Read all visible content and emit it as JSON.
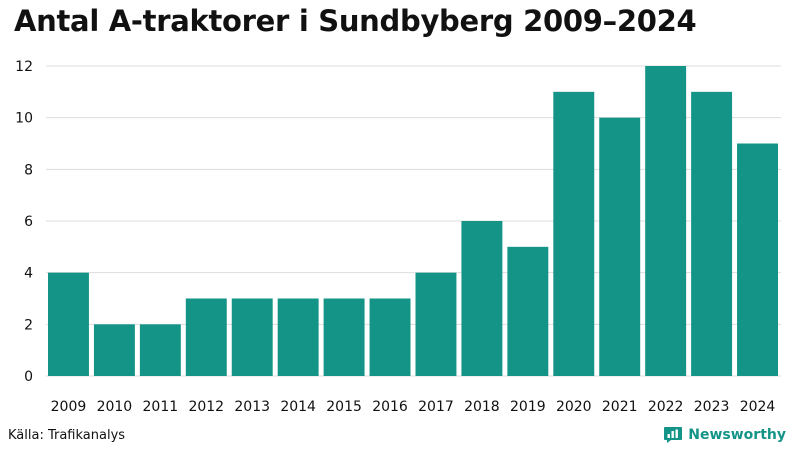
{
  "title": "Antal A-traktorer i Sundbyberg 2009–2024",
  "source": "Källa: Trafikanalys",
  "brand": {
    "name": "Newsworthy",
    "icon": "bar-chart-speech-icon"
  },
  "colors": {
    "bar": "#139487",
    "grid": "#dddddd",
    "text": "#111111",
    "brand": "#139487"
  },
  "chart_data": {
    "type": "bar",
    "categories": [
      "2009",
      "2010",
      "2011",
      "2012",
      "2013",
      "2014",
      "2015",
      "2016",
      "2017",
      "2018",
      "2019",
      "2020",
      "2021",
      "2022",
      "2023",
      "2024"
    ],
    "values": [
      4,
      2,
      2,
      3,
      3,
      3,
      3,
      3,
      4,
      6,
      5,
      11,
      10,
      12,
      11,
      9
    ],
    "yticks": [
      0,
      2,
      4,
      6,
      8,
      10,
      12
    ],
    "ylim": [
      0,
      12
    ],
    "grid": true,
    "legend": "none"
  }
}
